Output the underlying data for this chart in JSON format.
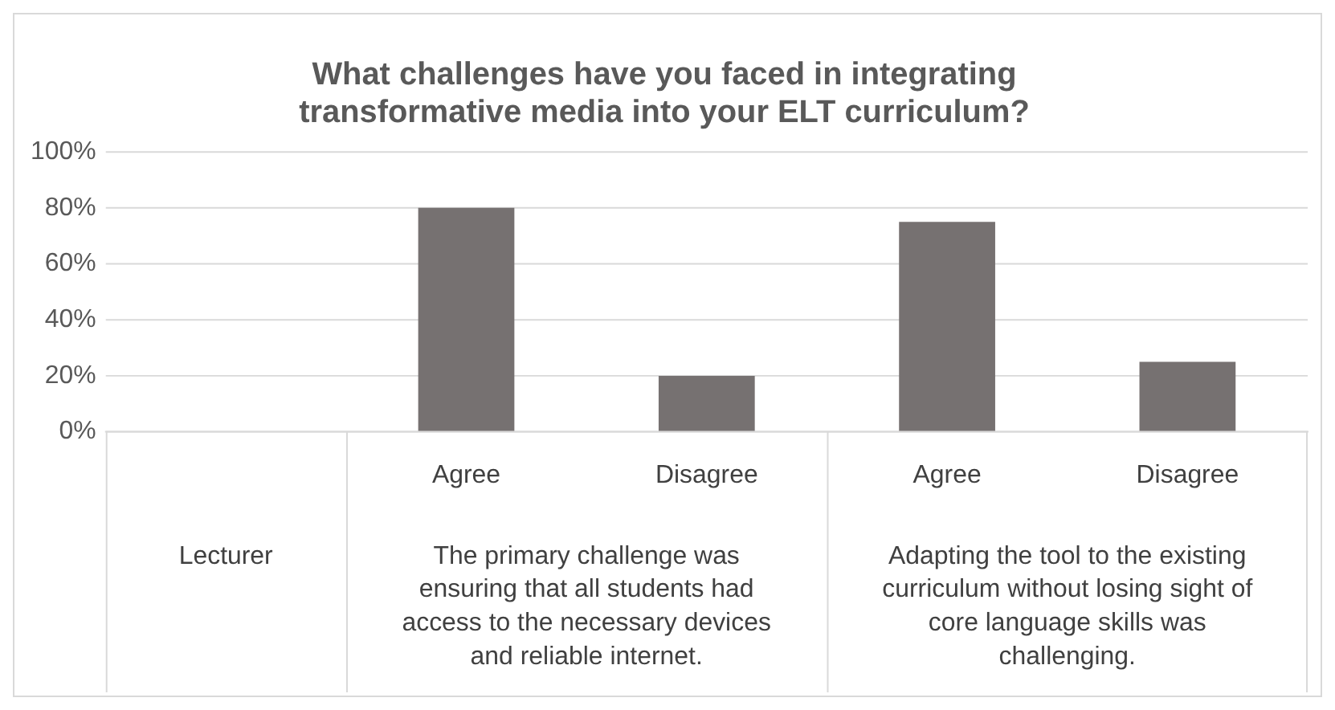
{
  "chart_data": {
    "type": "bar",
    "title": "What challenges have you faced in integrating transformative media into your ELT curriculum?",
    "categories": [
      null,
      "Agree",
      "Disagree",
      "Agree",
      "Disagree"
    ],
    "values": [
      null,
      80,
      20,
      75,
      25
    ],
    "color": "#767171",
    "ylim": [
      0,
      100
    ],
    "yticks": [
      {
        "value": 0,
        "label": "0%"
      },
      {
        "value": 20,
        "label": "20%"
      },
      {
        "value": 40,
        "label": "40%"
      },
      {
        "value": 60,
        "label": "60%"
      },
      {
        "value": 80,
        "label": "80%"
      },
      {
        "value": 100,
        "label": "100%"
      }
    ],
    "grid": "y",
    "legend": false,
    "annotations": [
      "Lecturer",
      "The primary challenge was ensuring that all students had access to the necessary devices and reliable internet.",
      "Adapting the tool to the existing curriculum without losing sight of core language skills was challenging."
    ]
  }
}
